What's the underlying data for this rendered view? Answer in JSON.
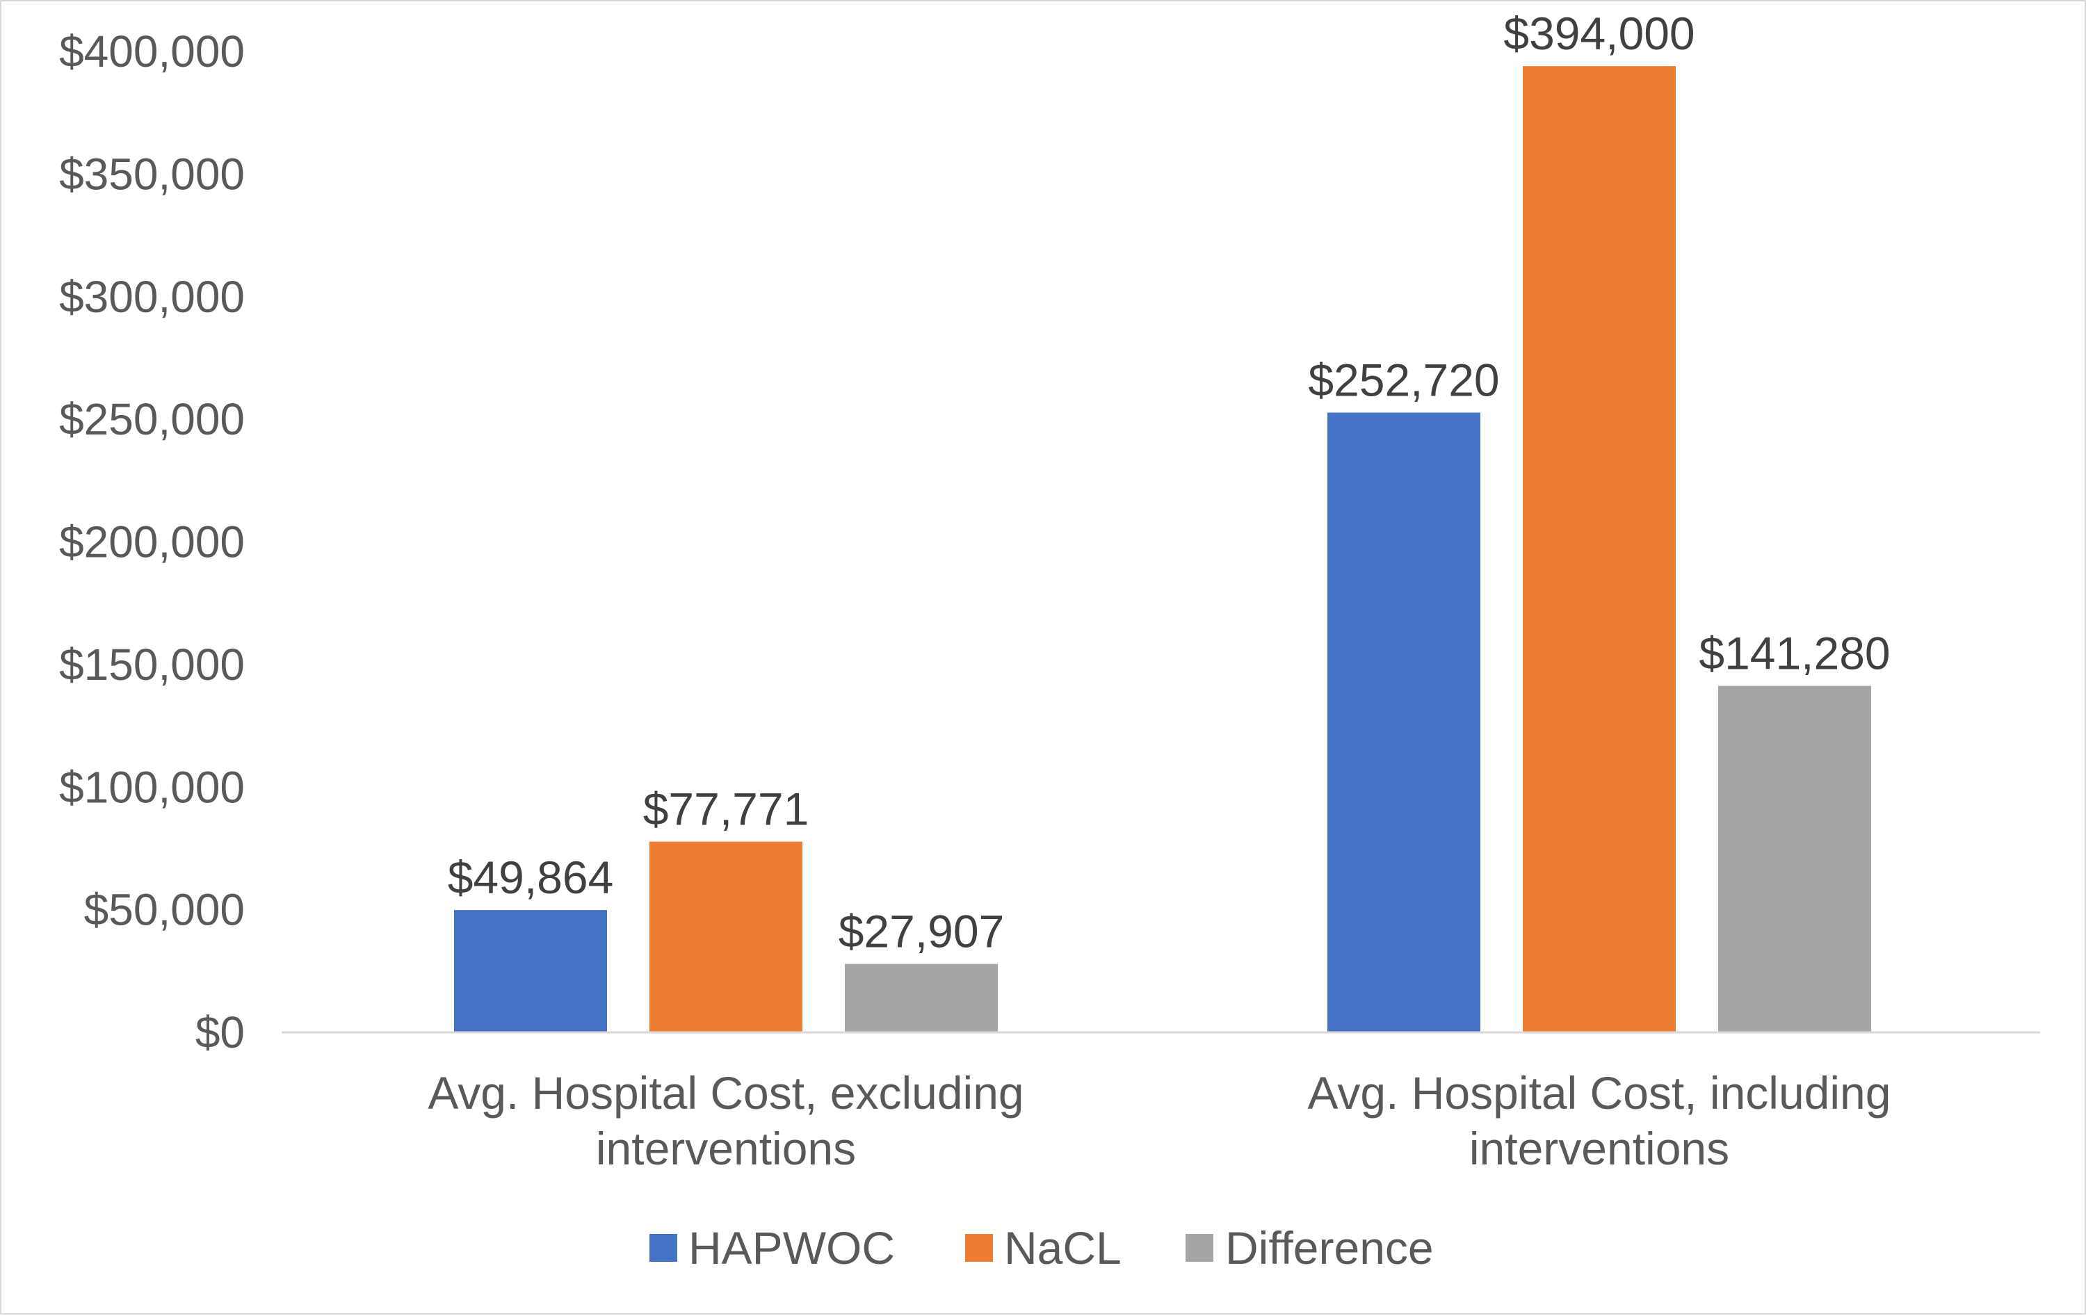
{
  "chart_data": {
    "type": "bar",
    "title": "",
    "xlabel": "",
    "ylabel": "",
    "categories": [
      [
        "Avg. Hospital Cost, excluding",
        "interventions"
      ],
      [
        "Avg. Hospital Cost, including",
        "interventions"
      ]
    ],
    "series": [
      {
        "name": "HAPWOC",
        "color": "#4472C4",
        "values": [
          49864,
          252720
        ],
        "labels": [
          "$49,864",
          "$252,720"
        ]
      },
      {
        "name": "NaCL",
        "color": "#ED7D31",
        "values": [
          77771,
          394000
        ],
        "labels": [
          "$77,771",
          "$394,000"
        ]
      },
      {
        "name": "Difference",
        "color": "#A5A5A5",
        "values": [
          27907,
          141280
        ],
        "labels": [
          "$27,907",
          "$141,280"
        ]
      }
    ],
    "ylim": [
      0,
      400000
    ],
    "yticks": [
      0,
      50000,
      100000,
      150000,
      200000,
      250000,
      300000,
      350000,
      400000
    ],
    "ytick_labels": [
      "$0",
      "$50,000",
      "$100,000",
      "$150,000",
      "$200,000",
      "$250,000",
      "$300,000",
      "$350,000",
      "$400,000"
    ],
    "grid": false,
    "legend_position": "bottom"
  }
}
